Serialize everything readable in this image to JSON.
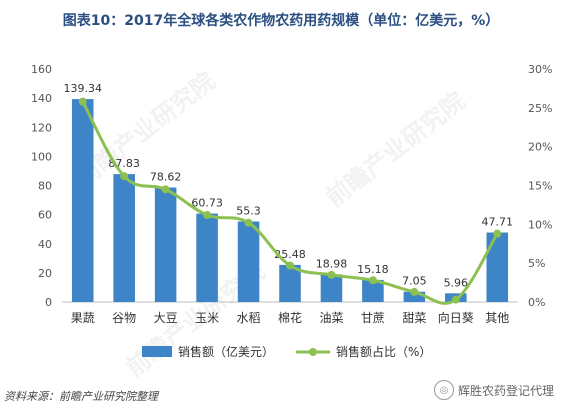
{
  "title": "图表10：2017年全球各类农作物农药用药规模（单位：亿美元，%）",
  "source": "资料来源：前瞻产业研究院整理",
  "brand": "辉胜农药登记代理",
  "watermark": "前瞻产业研究院",
  "chart_data": {
    "type": "bar",
    "categories": [
      "果蔬",
      "谷物",
      "大豆",
      "玉米",
      "水稻",
      "棉花",
      "油菜",
      "甘蔗",
      "甜菜",
      "向日葵",
      "其他"
    ],
    "series": [
      {
        "name": "销售额（亿美元）",
        "type": "bar",
        "axis": "left",
        "values": [
          139.34,
          87.83,
          78.62,
          60.73,
          55.3,
          25.48,
          18.98,
          15.18,
          7.05,
          5.96,
          47.71
        ],
        "labels": [
          "139.34",
          "87.83",
          "78.62",
          "60.73",
          "55.3",
          "25.48",
          "18.98",
          "15.18",
          "7.05",
          "5.96",
          "47.71"
        ],
        "color": "#3d85c6"
      },
      {
        "name": "销售额占比（%）",
        "type": "line",
        "axis": "right",
        "values": [
          25.8,
          16.2,
          14.5,
          11.2,
          10.2,
          4.7,
          3.5,
          2.8,
          1.3,
          0.3,
          8.8
        ],
        "color": "#8cc152"
      }
    ],
    "y_left": {
      "ylim": [
        0,
        160
      ],
      "ticks": [
        0,
        20,
        40,
        60,
        80,
        100,
        120,
        140,
        160
      ],
      "tick_labels": [
        "0",
        "20",
        "40",
        "60",
        "80",
        "100",
        "120",
        "140",
        "160"
      ]
    },
    "y_right": {
      "ylim": [
        0,
        30
      ],
      "ticks": [
        0,
        5,
        10,
        15,
        20,
        25,
        30
      ],
      "tick_labels": [
        "0%",
        "5%",
        "10%",
        "15%",
        "20%",
        "25%",
        "30%"
      ]
    },
    "legend_placement": "bottom",
    "grid": false
  }
}
